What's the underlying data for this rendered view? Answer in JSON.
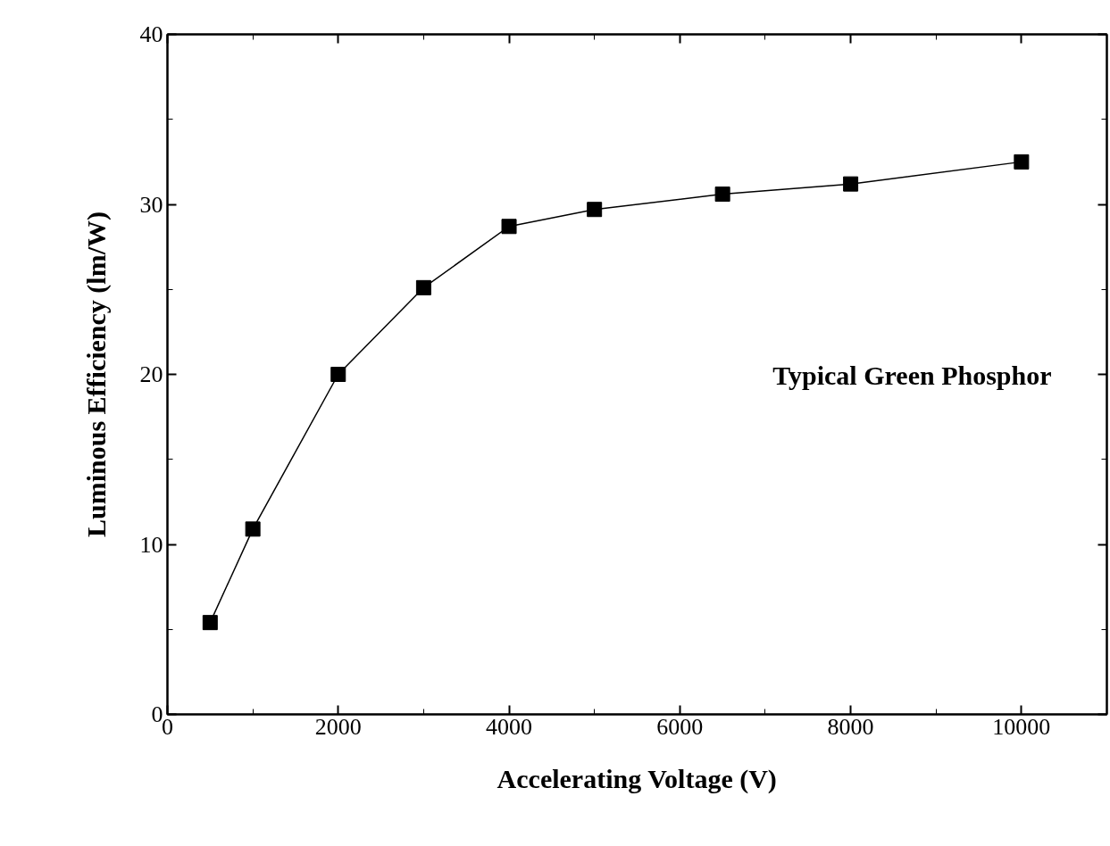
{
  "chart_data": {
    "type": "line",
    "xlabel": "Accelerating Voltage (V)",
    "ylabel": "Luminous Efficiency (lm/W)",
    "annotations": [
      "Typical Green Phosphor"
    ],
    "x": [
      500,
      1000,
      2000,
      3000,
      4000,
      5000,
      6500,
      8000,
      10000
    ],
    "series": [
      {
        "color": "#000000",
        "values": [
          5.4,
          10.9,
          20.0,
          25.1,
          28.7,
          29.7,
          30.6,
          31.2,
          32.5
        ]
      }
    ],
    "xlim": [
      0,
      11000
    ],
    "xticks": [
      0,
      2000,
      4000,
      6000,
      8000,
      10000
    ],
    "ylim": [
      0,
      40
    ],
    "yticks": [
      0,
      10,
      20,
      30,
      40
    ],
    "grid": false,
    "marker": "square",
    "line_style": "solid"
  }
}
